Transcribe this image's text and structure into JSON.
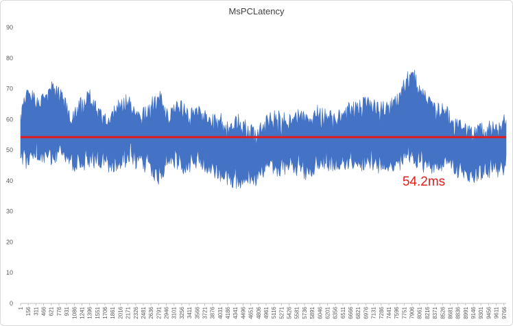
{
  "chart_data": {
    "type": "area",
    "title": "MsPCLatency",
    "xlabel": "",
    "ylabel": "",
    "ylim": [
      0,
      90
    ],
    "yticks": [
      0,
      10,
      20,
      30,
      40,
      50,
      60,
      70,
      80,
      90
    ],
    "xlim": [
      1,
      9811
    ],
    "xticks": [
      "1",
      "156",
      "311",
      "466",
      "621",
      "776",
      "931",
      "1086",
      "1241",
      "1396",
      "1551",
      "1706",
      "1861",
      "2016",
      "2171",
      "2326",
      "2481",
      "2636",
      "2791",
      "2946",
      "3101",
      "3256",
      "3411",
      "3566",
      "3721",
      "3876",
      "4031",
      "4186",
      "4341",
      "4496",
      "4651",
      "4806",
      "4961",
      "5116",
      "5271",
      "5426",
      "5581",
      "5736",
      "5891",
      "6046",
      "6201",
      "6356",
      "6511",
      "6666",
      "6821",
      "6976",
      "7131",
      "7286",
      "7441",
      "7596",
      "7751",
      "7906",
      "8061",
      "8216",
      "8371",
      "8526",
      "8681",
      "8836",
      "8991",
      "9146",
      "9301",
      "9456",
      "9611",
      "9766"
    ],
    "series": [
      {
        "kind": "band",
        "color": "#4472c4",
        "x": [
          1,
          150,
          300,
          500,
          650,
          800,
          1000,
          1200,
          1400,
          1600,
          1800,
          2000,
          2200,
          2400,
          2600,
          2800,
          3000,
          3200,
          3400,
          3600,
          3800,
          4000,
          4200,
          4400,
          4600,
          4800,
          5000,
          5200,
          5400,
          5600,
          5800,
          6000,
          6200,
          6400,
          6600,
          6800,
          7000,
          7200,
          7400,
          7600,
          7800,
          7900,
          8000,
          8200,
          8400,
          8600,
          8800,
          9000,
          9200,
          9400,
          9600,
          9811
        ],
        "high": [
          64,
          72,
          68,
          70,
          74,
          71,
          64,
          67,
          70,
          65,
          63,
          67,
          69,
          64,
          66,
          71,
          63,
          67,
          64,
          66,
          62,
          63,
          60,
          62,
          60,
          58,
          63,
          63,
          62,
          64,
          63,
          65,
          64,
          63,
          67,
          66,
          69,
          66,
          66,
          69,
          75,
          80,
          74,
          70,
          66,
          65,
          62,
          59,
          58,
          60,
          61,
          63
        ],
        "low": [
          45,
          43,
          47,
          45,
          44,
          46,
          43,
          42,
          44,
          44,
          42,
          43,
          45,
          43,
          42,
          38,
          44,
          42,
          42,
          44,
          41,
          40,
          38,
          37,
          36,
          38,
          43,
          41,
          42,
          41,
          40,
          42,
          43,
          41,
          43,
          42,
          43,
          42,
          42,
          42,
          45,
          46,
          44,
          42,
          42,
          43,
          41,
          39,
          39,
          41,
          40,
          41
        ]
      }
    ],
    "average": 54.2,
    "average_label": "54.2ms",
    "average_color": "#e31b1b",
    "grid": false,
    "legend": "none"
  }
}
